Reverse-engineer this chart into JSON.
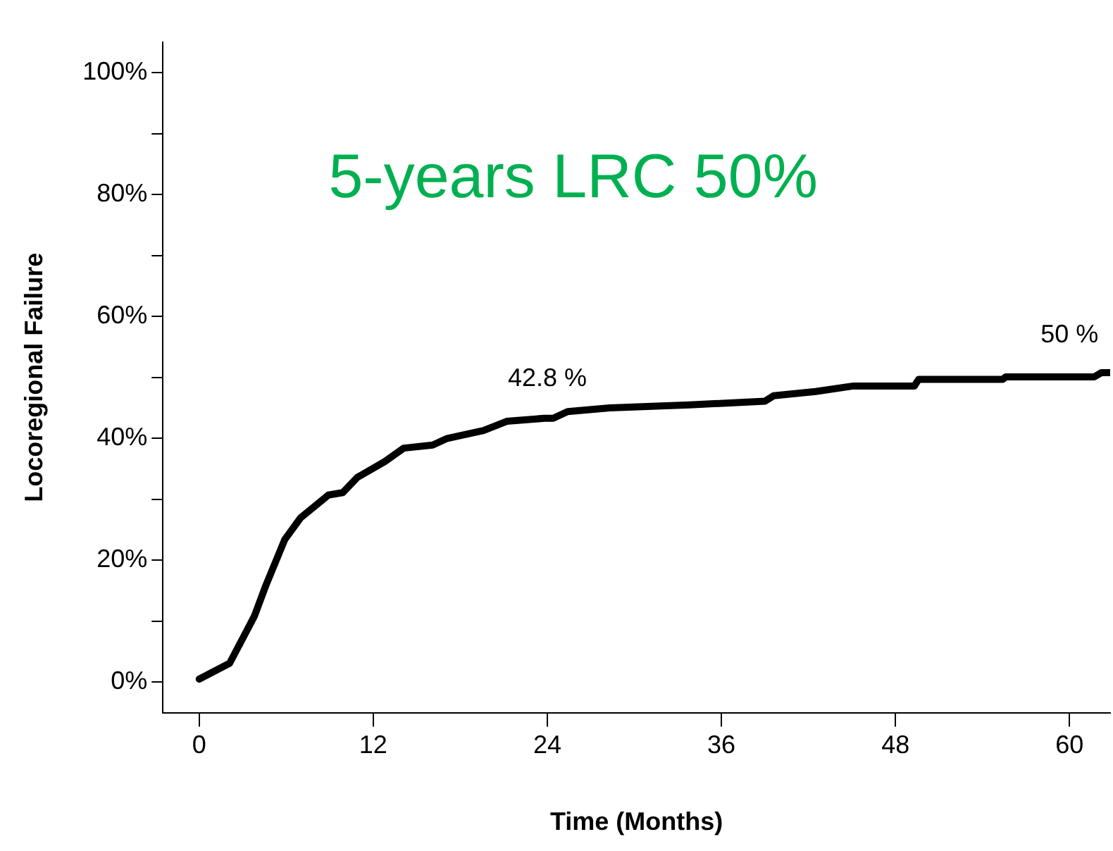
{
  "chart_data": {
    "type": "line",
    "xlabel": "Time (Months)",
    "ylabel": "Locoregional Failure",
    "x": [
      0,
      2.1,
      3.8,
      4.6,
      5.9,
      7.0,
      8.9,
      9.9,
      10.9,
      12.8,
      14.1,
      16.1,
      17.1,
      19.6,
      21.2,
      23.8,
      24.4,
      25.4,
      28.3,
      33.8,
      39,
      39.6,
      42.5,
      45.1,
      49.3,
      49.6,
      55.4,
      55.6,
      61.7,
      62.2,
      62.8
    ],
    "series": [
      {
        "color": "#000000",
        "values": [
          0.5,
          3.1,
          10.8,
          15.9,
          23.4,
          27,
          30.7,
          31.1,
          33.6,
          36.2,
          38.4,
          38.9,
          40,
          41.3,
          42.8,
          43.3,
          43.3,
          44.4,
          45,
          45.5,
          46.1,
          47,
          47.7,
          48.6,
          48.6,
          49.7,
          49.7,
          50.1,
          50.1,
          50.8,
          50.8
        ]
      }
    ],
    "xlim": [
      -2.5,
      62.8
    ],
    "xticks": [
      0,
      12,
      24,
      36,
      48,
      60
    ],
    "ylim": [
      -5,
      105
    ],
    "yticks": [
      {
        "value": 0,
        "label": "0%"
      },
      {
        "value": 10,
        "label": null
      },
      {
        "value": 20,
        "label": "20%"
      },
      {
        "value": 30,
        "label": null
      },
      {
        "value": 40,
        "label": "40%"
      },
      {
        "value": 50,
        "label": null
      },
      {
        "value": 60,
        "label": "60%"
      },
      {
        "value": 70,
        "label": null
      },
      {
        "value": 80,
        "label": "80%"
      },
      {
        "value": 90,
        "label": null
      },
      {
        "value": 100,
        "label": "100%"
      }
    ],
    "annotations": [
      "5-years LRC 50%",
      {
        "text": "42.8 %",
        "x": 24,
        "y": 42.8
      },
      {
        "text": "50 %",
        "x": 60,
        "y": 50
      }
    ],
    "grid": false,
    "legend": false,
    "marker": "none",
    "line_style": "solid"
  }
}
